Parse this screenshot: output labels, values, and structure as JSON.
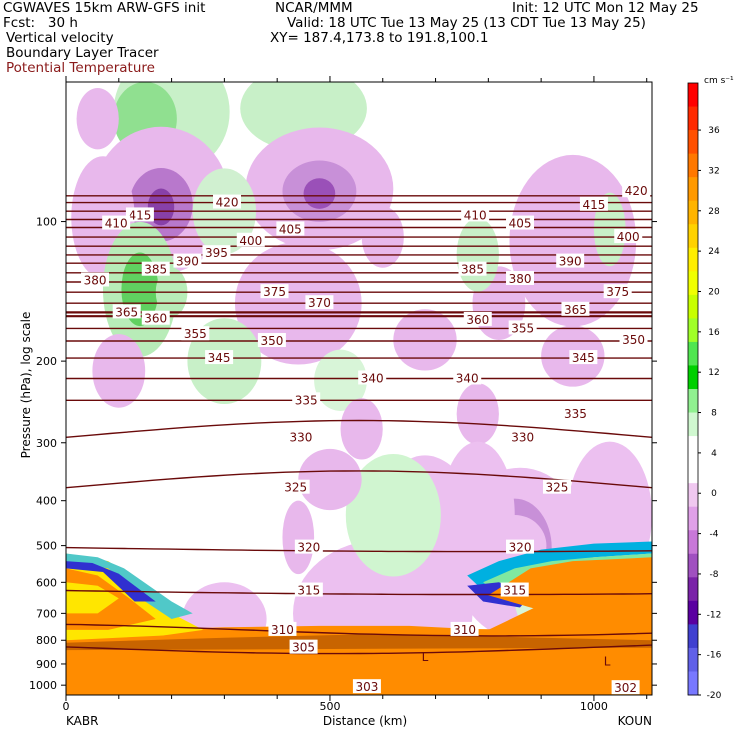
{
  "header": {
    "line1_left": "CGWAVES 15km ARW-GFS init",
    "line1_mid": "NCAR/MMM",
    "line1_right": "Init: 12 UTC Mon 12 May 25",
    "line2_left": "Fcst:   30 h",
    "line2_right": "Valid: 18 UTC Tue 13 May 25 (13 CDT Tue 13 May 25)",
    "line3_left": "Vertical velocity",
    "line3_right": "XY= 187.4,173.8 to 191.8,100.1",
    "line4_left": "Boundary Layer Tracer",
    "line5_left": "Potential Temperature"
  },
  "chart_data": {
    "type": "heatmap",
    "xlabel": "Distance (km)",
    "ylabel": "Pressure (hPa), log scale",
    "x_start_label": "KABR",
    "x_end_label": "KOUN",
    "xlim": [
      0,
      1110
    ],
    "ylim": [
      1050,
      50
    ],
    "x_ticks": [
      0,
      500,
      1000
    ],
    "y_ticks": [
      100,
      200,
      300,
      400,
      500,
      600,
      700,
      800,
      900,
      1000
    ],
    "colorbar": {
      "units": "cm s⁻¹",
      "levels": [
        36,
        32,
        28,
        24,
        20,
        16,
        12,
        8,
        4,
        0,
        -4,
        -8,
        -12,
        -16,
        -20
      ],
      "colors": [
        "#ff0000",
        "#ff2a00",
        "#ff5000",
        "#ff7800",
        "#ff9900",
        "#ffb400",
        "#ffd200",
        "#ffee00",
        "#f0ff00",
        "#c8ff00",
        "#a0ff28",
        "#50e650",
        "#00d000",
        "#90f090",
        "#d0f8d0",
        "#ffffff",
        "#ffffff",
        "#f0c8f0",
        "#e0a0e8",
        "#c878d8",
        "#a050c0",
        "#7a22a8",
        "#5a00a0",
        "#4040d0",
        "#6060e8",
        "#7878ff"
      ]
    },
    "theta_labels": [
      {
        "v": "420",
        "x": 305,
        "p": 91
      },
      {
        "v": "415",
        "x": 140,
        "p": 97
      },
      {
        "v": "410",
        "x": 95,
        "p": 101
      },
      {
        "v": "405",
        "x": 425,
        "p": 104
      },
      {
        "v": "400",
        "x": 350,
        "p": 110
      },
      {
        "v": "395",
        "x": 285,
        "p": 117
      },
      {
        "v": "390",
        "x": 230,
        "p": 122
      },
      {
        "v": "385",
        "x": 170,
        "p": 127
      },
      {
        "v": "380",
        "x": 55,
        "p": 134
      },
      {
        "v": "375",
        "x": 395,
        "p": 142
      },
      {
        "v": "370",
        "x": 480,
        "p": 150
      },
      {
        "v": "365",
        "x": 115,
        "p": 157
      },
      {
        "v": "360",
        "x": 170,
        "p": 162
      },
      {
        "v": "355",
        "x": 245,
        "p": 175
      },
      {
        "v": "350",
        "x": 390,
        "p": 181
      },
      {
        "v": "345",
        "x": 290,
        "p": 197
      },
      {
        "v": "340",
        "x": 580,
        "p": 218
      },
      {
        "v": "335",
        "x": 455,
        "p": 243
      },
      {
        "v": "330",
        "x": 445,
        "p": 292
      },
      {
        "v": "325",
        "x": 435,
        "p": 375
      },
      {
        "v": "320",
        "x": 460,
        "p": 505
      },
      {
        "v": "315",
        "x": 460,
        "p": 625
      },
      {
        "v": "310",
        "x": 410,
        "p": 760
      },
      {
        "v": "305",
        "x": 450,
        "p": 830
      },
      {
        "v": "303",
        "x": 570,
        "p": 1010
      },
      {
        "v": "302",
        "x": 1060,
        "p": 1015
      }
    ],
    "theta_labels_right": [
      {
        "v": "420",
        "x": 1080,
        "p": 86
      },
      {
        "v": "415",
        "x": 1000,
        "p": 92
      },
      {
        "v": "410",
        "x": 775,
        "p": 97
      },
      {
        "v": "405",
        "x": 860,
        "p": 101
      },
      {
        "v": "400",
        "x": 1065,
        "p": 108
      },
      {
        "v": "390",
        "x": 955,
        "p": 122
      },
      {
        "v": "385",
        "x": 770,
        "p": 127
      },
      {
        "v": "380",
        "x": 860,
        "p": 133
      },
      {
        "v": "375",
        "x": 1045,
        "p": 142
      },
      {
        "v": "365",
        "x": 965,
        "p": 155
      },
      {
        "v": "360",
        "x": 780,
        "p": 163
      },
      {
        "v": "355",
        "x": 865,
        "p": 170
      },
      {
        "v": "350",
        "x": 1075,
        "p": 180
      },
      {
        "v": "345",
        "x": 980,
        "p": 197
      },
      {
        "v": "340",
        "x": 760,
        "p": 218
      },
      {
        "v": "335",
        "x": 965,
        "p": 260
      },
      {
        "v": "330",
        "x": 865,
        "p": 292
      },
      {
        "v": "325",
        "x": 930,
        "p": 375
      },
      {
        "v": "320",
        "x": 860,
        "p": 505
      },
      {
        "v": "315",
        "x": 850,
        "p": 625
      },
      {
        "v": "310",
        "x": 755,
        "p": 760
      }
    ],
    "low_markers": [
      {
        "v": "L",
        "x": 680,
        "p": 870
      },
      {
        "v": "L",
        "x": 1025,
        "p": 890
      }
    ]
  }
}
